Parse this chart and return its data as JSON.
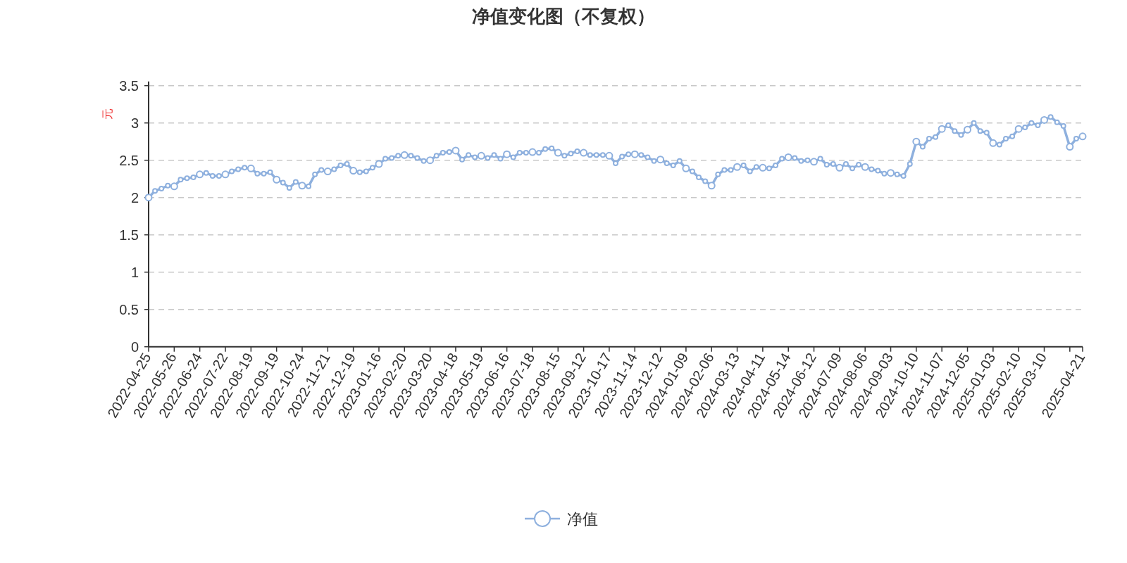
{
  "chart_data": {
    "type": "line",
    "title": "净值变化图（不复权）",
    "ylabel": "元",
    "categories": [
      "2022-04-25",
      null,
      null,
      null,
      "2022-05-26",
      null,
      null,
      null,
      "2022-06-24",
      null,
      null,
      null,
      "2022-07-22",
      null,
      null,
      null,
      "2022-08-19",
      null,
      null,
      null,
      "2022-09-19",
      null,
      null,
      null,
      "2022-10-24",
      null,
      null,
      null,
      "2022-11-21",
      null,
      null,
      null,
      "2022-12-19",
      null,
      null,
      null,
      "2023-01-16",
      null,
      null,
      null,
      "2023-02-20",
      null,
      null,
      null,
      "2023-03-20",
      null,
      null,
      null,
      "2023-04-18",
      null,
      null,
      null,
      "2023-05-19",
      null,
      null,
      null,
      "2023-06-16",
      null,
      null,
      null,
      "2023-07-18",
      null,
      null,
      null,
      "2023-08-15",
      null,
      null,
      null,
      "2023-09-12",
      null,
      null,
      null,
      "2023-10-17",
      null,
      null,
      null,
      "2023-11-14",
      null,
      null,
      null,
      "2023-12-12",
      null,
      null,
      null,
      "2024-01-09",
      null,
      null,
      null,
      "2024-02-06",
      null,
      null,
      null,
      "2024-03-13",
      null,
      null,
      null,
      "2024-04-11",
      null,
      null,
      null,
      "2024-05-14",
      null,
      null,
      null,
      "2024-06-12",
      null,
      null,
      null,
      "2024-07-09",
      null,
      null,
      null,
      "2024-08-06",
      null,
      null,
      null,
      "2024-09-03",
      null,
      null,
      null,
      "2024-10-10",
      null,
      null,
      null,
      "2024-11-07",
      null,
      null,
      null,
      "2024-12-05",
      null,
      null,
      null,
      "2025-01-03",
      null,
      null,
      null,
      "2025-02-10",
      null,
      null,
      null,
      "2025-03-10",
      null,
      null,
      null,
      null,
      null,
      "2025-04-21"
    ],
    "series": [
      {
        "name": "净值",
        "color": "#8eb0de",
        "values": [
          2.0,
          2.09,
          2.12,
          2.16,
          2.15,
          2.24,
          2.26,
          2.27,
          2.31,
          2.33,
          2.29,
          2.29,
          2.31,
          2.35,
          2.38,
          2.4,
          2.39,
          2.32,
          2.32,
          2.34,
          2.24,
          2.2,
          2.13,
          2.21,
          2.16,
          2.15,
          2.31,
          2.37,
          2.35,
          2.38,
          2.43,
          2.45,
          2.36,
          2.34,
          2.35,
          2.4,
          2.45,
          2.52,
          2.53,
          2.56,
          2.57,
          2.56,
          2.53,
          2.49,
          2.5,
          2.56,
          2.6,
          2.61,
          2.63,
          2.51,
          2.57,
          2.54,
          2.56,
          2.53,
          2.57,
          2.52,
          2.58,
          2.54,
          2.6,
          2.6,
          2.61,
          2.6,
          2.65,
          2.66,
          2.6,
          2.56,
          2.59,
          2.62,
          2.6,
          2.57,
          2.57,
          2.57,
          2.56,
          2.46,
          2.55,
          2.58,
          2.58,
          2.57,
          2.54,
          2.49,
          2.51,
          2.46,
          2.43,
          2.49,
          2.39,
          2.35,
          2.27,
          2.22,
          2.16,
          2.31,
          2.37,
          2.37,
          2.41,
          2.43,
          2.35,
          2.41,
          2.4,
          2.39,
          2.43,
          2.52,
          2.54,
          2.53,
          2.49,
          2.5,
          2.48,
          2.52,
          2.44,
          2.45,
          2.4,
          2.45,
          2.39,
          2.44,
          2.41,
          2.38,
          2.36,
          2.32,
          2.33,
          2.31,
          2.29,
          2.45,
          2.75,
          2.68,
          2.79,
          2.81,
          2.92,
          2.97,
          2.89,
          2.84,
          2.91,
          3.0,
          2.89,
          2.87,
          2.73,
          2.71,
          2.79,
          2.82,
          2.92,
          2.94,
          3.0,
          2.97,
          3.04,
          3.08,
          3.01,
          2.96,
          2.68,
          2.79,
          2.82
        ]
      }
    ],
    "ylim": [
      0,
      3.5
    ],
    "yticks": [
      0,
      0.5,
      1,
      1.5,
      2,
      2.5,
      3,
      3.5
    ],
    "grid": "y",
    "legend": "bottom",
    "marker": "circle",
    "line_style": "solid"
  }
}
